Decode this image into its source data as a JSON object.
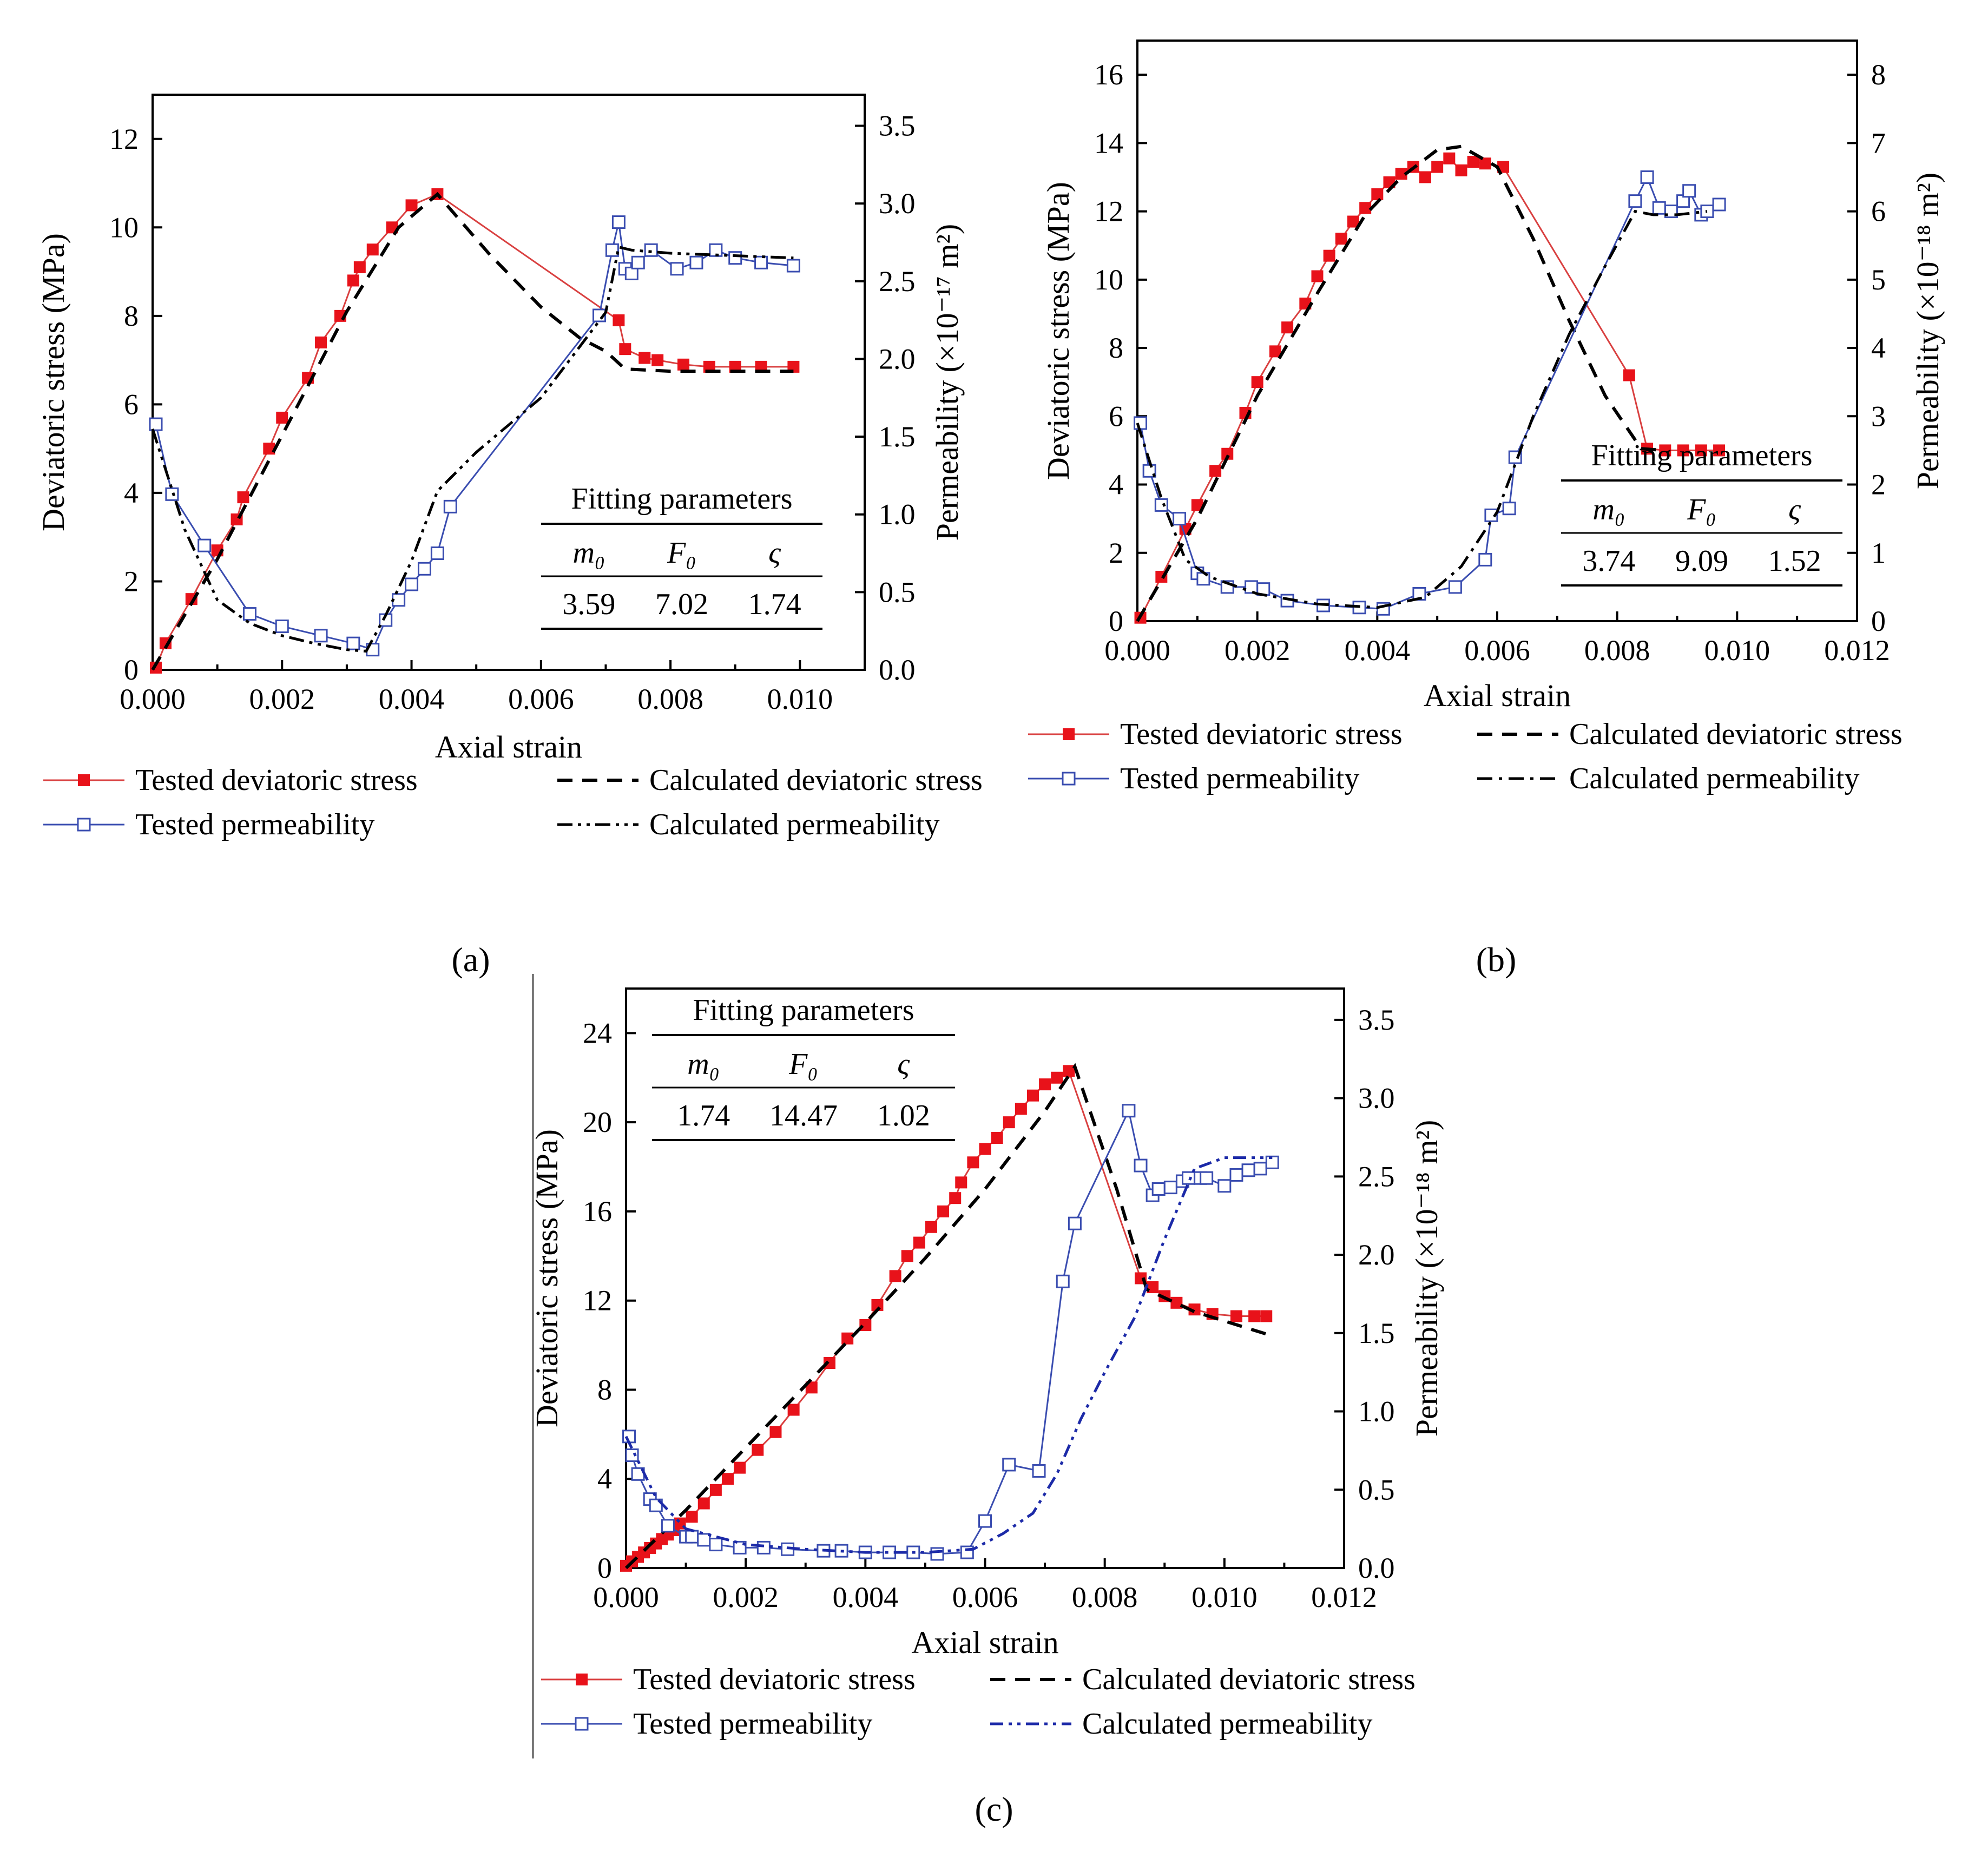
{
  "panel_labels": [
    "(a)",
    "(b)",
    "(c)"
  ],
  "chart_data": [
    {
      "id": "a",
      "type": "line",
      "label": "(a)",
      "xlabel": "Axial strain",
      "ylabel": "Deviatoric stress (MPa)",
      "y2label": "Permeability (×10⁻¹⁷ m²)",
      "xlim": [
        0.0,
        0.011
      ],
      "xticks": [
        "0.000",
        "0.002",
        "0.004",
        "0.006",
        "0.008",
        "0.010"
      ],
      "xtick_values": [
        0.0,
        0.002,
        0.004,
        0.006,
        0.008,
        0.01
      ],
      "ylim": [
        0,
        13
      ],
      "yticks": [
        "0",
        "2",
        "4",
        "6",
        "8",
        "10",
        "12"
      ],
      "ytick_values": [
        0,
        2,
        4,
        6,
        8,
        10,
        12
      ],
      "y2lim": [
        0,
        3.7
      ],
      "y2ticks": [
        "0.0",
        "0.5",
        "1.0",
        "1.5",
        "2.0",
        "2.5",
        "3.0",
        "3.5"
      ],
      "y2tick_values": [
        0.0,
        0.5,
        1.0,
        1.5,
        2.0,
        2.5,
        3.0,
        3.5
      ],
      "fitting": {
        "title": "Fitting parameters",
        "headers": [
          "m₀",
          "F₀",
          "ς"
        ],
        "values": [
          "3.59",
          "7.02",
          "1.74"
        ]
      },
      "legend": [
        "Tested deviatoric stress",
        "Calculated deviatoric stress",
        "Tested permeability",
        "Calculated permeability"
      ],
      "series": [
        {
          "name": "Tested deviatoric stress",
          "axis": "left",
          "style": "red-filled",
          "x": [
            5e-05,
            0.0002,
            0.0006,
            0.001,
            0.0013,
            0.0014,
            0.0018,
            0.002,
            0.0024,
            0.0026,
            0.0029,
            0.0031,
            0.0032,
            0.0034,
            0.0037,
            0.004,
            0.0044,
            0.0072,
            0.0073,
            0.0076,
            0.0078,
            0.0082,
            0.0086,
            0.009,
            0.0094,
            0.0099
          ],
          "y": [
            0.05,
            0.6,
            1.6,
            2.7,
            3.4,
            3.9,
            5.0,
            5.7,
            6.6,
            7.4,
            8.0,
            8.8,
            9.1,
            9.5,
            10.0,
            10.5,
            10.75,
            7.9,
            7.25,
            7.05,
            7.0,
            6.9,
            6.85,
            6.85,
            6.85,
            6.85
          ]
        },
        {
          "name": "Calculated deviatoric stress",
          "axis": "left",
          "style": "black-dash",
          "x": [
            0.0,
            0.001,
            0.002,
            0.003,
            0.0038,
            0.0044,
            0.0052,
            0.006,
            0.0066,
            0.007,
            0.0073,
            0.008,
            0.0099
          ],
          "y": [
            0.0,
            2.5,
            5.3,
            8.1,
            10.0,
            10.75,
            9.4,
            8.2,
            7.5,
            7.2,
            6.8,
            6.75,
            6.75
          ]
        },
        {
          "name": "Tested permeability",
          "axis": "right",
          "style": "blue-open",
          "x": [
            5e-05,
            0.0003,
            0.0008,
            0.0015,
            0.002,
            0.0026,
            0.0031,
            0.0034,
            0.0036,
            0.0038,
            0.004,
            0.0042,
            0.0044,
            0.0046,
            0.0069,
            0.0071,
            0.0072,
            0.0073,
            0.0074,
            0.0075,
            0.0077,
            0.0081,
            0.0084,
            0.0087,
            0.009,
            0.0094,
            0.0099
          ],
          "y": [
            1.58,
            1.13,
            0.8,
            0.36,
            0.28,
            0.22,
            0.17,
            0.13,
            0.32,
            0.45,
            0.55,
            0.65,
            0.75,
            1.05,
            2.28,
            2.7,
            2.88,
            2.58,
            2.55,
            2.62,
            2.7,
            2.58,
            2.62,
            2.7,
            2.65,
            2.62,
            2.6
          ]
        },
        {
          "name": "Calculated permeability",
          "axis": "right",
          "style": "black-dashdotdot",
          "x": [
            0.0,
            0.0005,
            0.001,
            0.0015,
            0.002,
            0.0025,
            0.003,
            0.0033,
            0.0036,
            0.004,
            0.0044,
            0.005,
            0.006,
            0.007,
            0.0072,
            0.0074,
            0.008,
            0.0099
          ],
          "y": [
            1.55,
            0.9,
            0.45,
            0.3,
            0.22,
            0.17,
            0.13,
            0.12,
            0.35,
            0.7,
            1.15,
            1.4,
            1.75,
            2.3,
            2.72,
            2.7,
            2.68,
            2.65
          ]
        }
      ]
    },
    {
      "id": "b",
      "type": "line",
      "label": "(b)",
      "xlabel": "Axial strain",
      "ylabel": "Deviatoric stress (MPa)",
      "y2label": "Permeability (×10⁻¹⁸ m²)",
      "xlim": [
        0.0,
        0.012
      ],
      "xticks": [
        "0.000",
        "0.002",
        "0.004",
        "0.006",
        "0.008",
        "0.010",
        "0.012"
      ],
      "xtick_values": [
        0.0,
        0.002,
        0.004,
        0.006,
        0.008,
        0.01,
        0.012
      ],
      "ylim": [
        0,
        17
      ],
      "yticks": [
        "0",
        "2",
        "4",
        "6",
        "8",
        "10",
        "12",
        "14",
        "16"
      ],
      "ytick_values": [
        0,
        2,
        4,
        6,
        8,
        10,
        12,
        14,
        16
      ],
      "y2lim": [
        0,
        8.5
      ],
      "y2ticks": [
        "0",
        "1",
        "2",
        "3",
        "4",
        "5",
        "6",
        "7",
        "8"
      ],
      "y2tick_values": [
        0,
        1,
        2,
        3,
        4,
        5,
        6,
        7,
        8
      ],
      "fitting": {
        "title": "Fitting parameters",
        "headers": [
          "m₀",
          "F₀",
          "ς"
        ],
        "values": [
          "3.74",
          "9.09",
          "1.52"
        ]
      },
      "legend": [
        "Tested deviatoric stress",
        "Calculated deviatoric stress",
        "Tested permeability",
        "Calculated permeability"
      ],
      "series": [
        {
          "name": "Tested deviatoric stress",
          "axis": "left",
          "style": "red-filled",
          "x": [
            5e-05,
            0.0004,
            0.0008,
            0.001,
            0.0013,
            0.0015,
            0.0018,
            0.002,
            0.0023,
            0.0025,
            0.0028,
            0.003,
            0.0032,
            0.0034,
            0.0036,
            0.0038,
            0.004,
            0.0042,
            0.0044,
            0.0046,
            0.0048,
            0.005,
            0.0052,
            0.0054,
            0.0056,
            0.0058,
            0.0061,
            0.0082,
            0.0085,
            0.0088,
            0.0091,
            0.0094,
            0.0097
          ],
          "y": [
            0.1,
            1.3,
            2.7,
            3.4,
            4.4,
            4.9,
            6.1,
            7.0,
            7.9,
            8.6,
            9.3,
            10.1,
            10.7,
            11.2,
            11.7,
            12.1,
            12.5,
            12.85,
            13.1,
            13.3,
            13.0,
            13.3,
            13.55,
            13.2,
            13.45,
            13.4,
            13.3,
            7.2,
            5.05,
            5.0,
            5.0,
            5.0,
            5.0
          ]
        },
        {
          "name": "Calculated deviatoric stress",
          "axis": "left",
          "style": "black-dash",
          "x": [
            0.0,
            0.001,
            0.002,
            0.003,
            0.0038,
            0.0044,
            0.005,
            0.0054,
            0.006,
            0.0066,
            0.0072,
            0.0078,
            0.0084,
            0.0088
          ],
          "y": [
            0.0,
            3.0,
            6.6,
            9.6,
            11.9,
            13.0,
            13.8,
            13.9,
            13.3,
            11.2,
            8.8,
            6.6,
            5.05,
            5.0
          ]
        },
        {
          "name": "Tested permeability",
          "axis": "right",
          "style": "blue-open",
          "x": [
            5e-05,
            0.0002,
            0.0004,
            0.0007,
            0.001,
            0.0011,
            0.0015,
            0.0019,
            0.0021,
            0.0025,
            0.0031,
            0.0037,
            0.0041,
            0.0047,
            0.0053,
            0.0058,
            0.0059,
            0.0062,
            0.0063,
            0.0083,
            0.0085,
            0.0087,
            0.0089,
            0.0091,
            0.0092,
            0.0094,
            0.0095,
            0.0097
          ],
          "y": [
            2.9,
            2.2,
            1.7,
            1.5,
            0.7,
            0.62,
            0.5,
            0.5,
            0.47,
            0.3,
            0.23,
            0.2,
            0.18,
            0.4,
            0.5,
            0.9,
            1.55,
            1.65,
            2.4,
            6.15,
            6.5,
            6.05,
            6.0,
            6.15,
            6.3,
            5.95,
            6.0,
            6.1
          ]
        },
        {
          "name": "Calculated permeability",
          "axis": "right",
          "style": "black-dashdot",
          "x": [
            0.0,
            0.0004,
            0.0008,
            0.0012,
            0.002,
            0.003,
            0.004,
            0.0048,
            0.0054,
            0.006,
            0.0066,
            0.0072,
            0.0078,
            0.0083,
            0.0086,
            0.009,
            0.0095
          ],
          "y": [
            2.9,
            1.8,
            0.9,
            0.65,
            0.4,
            0.25,
            0.2,
            0.35,
            0.8,
            1.6,
            3.0,
            4.2,
            5.2,
            6.0,
            5.95,
            5.95,
            6.0
          ]
        }
      ]
    },
    {
      "id": "c",
      "type": "line",
      "label": "(c)",
      "xlabel": "Axial strain",
      "ylabel": "Deviatoric stress (MPa)",
      "y2label": "Permeability (×10⁻¹⁸ m²)",
      "xlim": [
        0.0,
        0.012
      ],
      "xticks": [
        "0.000",
        "0.002",
        "0.004",
        "0.006",
        "0.008",
        "0.010",
        "0.012"
      ],
      "xtick_values": [
        0.0,
        0.002,
        0.004,
        0.006,
        0.008,
        0.01,
        0.012
      ],
      "ylim": [
        0,
        26
      ],
      "yticks": [
        "0",
        "4",
        "8",
        "12",
        "16",
        "20",
        "24"
      ],
      "ytick_values": [
        0,
        4,
        8,
        12,
        16,
        20,
        24
      ],
      "y2lim": [
        0,
        3.7
      ],
      "y2ticks": [
        "0.0",
        "0.5",
        "1.0",
        "1.5",
        "2.0",
        "2.5",
        "3.0",
        "3.5"
      ],
      "y2tick_values": [
        0.0,
        0.5,
        1.0,
        1.5,
        2.0,
        2.5,
        3.0,
        3.5
      ],
      "fitting": {
        "title": "Fitting parameters",
        "headers": [
          "m₀",
          "F₀",
          "ς"
        ],
        "values": [
          "1.74",
          "14.47",
          "1.02"
        ]
      },
      "legend": [
        "Tested deviatoric stress",
        "Calculated deviatoric stress",
        "Tested permeability",
        "Calculated permeability"
      ],
      "series": [
        {
          "name": "Tested deviatoric stress",
          "axis": "left",
          "style": "red-filled",
          "x": [
            0.0,
            0.0001,
            0.0002,
            0.0003,
            0.0004,
            0.0005,
            0.0006,
            0.0007,
            0.0008,
            0.0009,
            0.0011,
            0.0013,
            0.0015,
            0.0017,
            0.0019,
            0.0022,
            0.0025,
            0.0028,
            0.0031,
            0.0034,
            0.0037,
            0.004,
            0.0042,
            0.0045,
            0.0047,
            0.0049,
            0.0051,
            0.0053,
            0.0055,
            0.0056,
            0.0058,
            0.006,
            0.0062,
            0.0064,
            0.0066,
            0.0068,
            0.007,
            0.0072,
            0.0074,
            0.0086,
            0.0088,
            0.009,
            0.0092,
            0.0095,
            0.0098,
            0.0102,
            0.0105,
            0.0107
          ],
          "y": [
            0.1,
            0.3,
            0.5,
            0.7,
            0.9,
            1.1,
            1.3,
            1.5,
            1.7,
            2.0,
            2.3,
            2.9,
            3.5,
            4.0,
            4.5,
            5.3,
            6.1,
            7.1,
            8.1,
            9.2,
            10.3,
            10.9,
            11.8,
            13.1,
            14.0,
            14.6,
            15.3,
            16.0,
            16.6,
            17.3,
            18.2,
            18.8,
            19.3,
            20.0,
            20.6,
            21.2,
            21.7,
            22.0,
            22.3,
            13.0,
            12.6,
            12.2,
            11.9,
            11.6,
            11.4,
            11.3,
            11.3,
            11.3
          ]
        },
        {
          "name": "Calculated deviatoric stress",
          "axis": "left",
          "style": "black-dash",
          "x": [
            0.0,
            0.001,
            0.002,
            0.003,
            0.004,
            0.005,
            0.006,
            0.007,
            0.0075,
            0.0082,
            0.0087,
            0.0095,
            0.0107
          ],
          "y": [
            0.0,
            2.6,
            5.4,
            8.2,
            11.0,
            13.9,
            17.0,
            20.5,
            22.5,
            17.0,
            12.5,
            11.5,
            10.5
          ]
        },
        {
          "name": "Tested permeability",
          "axis": "right",
          "style": "blue-open",
          "x": [
            5e-05,
            0.0001,
            0.0002,
            0.0004,
            0.0005,
            0.0007,
            0.001,
            0.0011,
            0.0013,
            0.0015,
            0.0019,
            0.0023,
            0.0027,
            0.0033,
            0.0036,
            0.004,
            0.0044,
            0.0048,
            0.0052,
            0.0057,
            0.006,
            0.0064,
            0.0069,
            0.0073,
            0.0075,
            0.0084,
            0.0086,
            0.0088,
            0.0089,
            0.0091,
            0.0093,
            0.0094,
            0.0096,
            0.0097,
            0.01,
            0.0102,
            0.0104,
            0.0106,
            0.0108
          ],
          "y": [
            0.84,
            0.72,
            0.6,
            0.44,
            0.4,
            0.27,
            0.2,
            0.2,
            0.18,
            0.15,
            0.13,
            0.13,
            0.12,
            0.11,
            0.11,
            0.1,
            0.1,
            0.1,
            0.09,
            0.1,
            0.3,
            0.66,
            0.62,
            1.83,
            2.2,
            2.92,
            2.57,
            2.38,
            2.42,
            2.43,
            2.47,
            2.49,
            2.49,
            2.49,
            2.44,
            2.51,
            2.54,
            2.55,
            2.59
          ]
        },
        {
          "name": "Calculated permeability",
          "axis": "right",
          "style": "blue-dashdotdot",
          "x": [
            0.0,
            0.0005,
            0.001,
            0.002,
            0.003,
            0.004,
            0.005,
            0.0058,
            0.0063,
            0.0068,
            0.0072,
            0.0076,
            0.008,
            0.0085,
            0.009,
            0.0095,
            0.01,
            0.0108
          ],
          "y": [
            0.84,
            0.45,
            0.25,
            0.15,
            0.12,
            0.1,
            0.1,
            0.12,
            0.22,
            0.35,
            0.6,
            0.95,
            1.25,
            1.6,
            2.1,
            2.55,
            2.62,
            2.62
          ]
        }
      ]
    }
  ]
}
